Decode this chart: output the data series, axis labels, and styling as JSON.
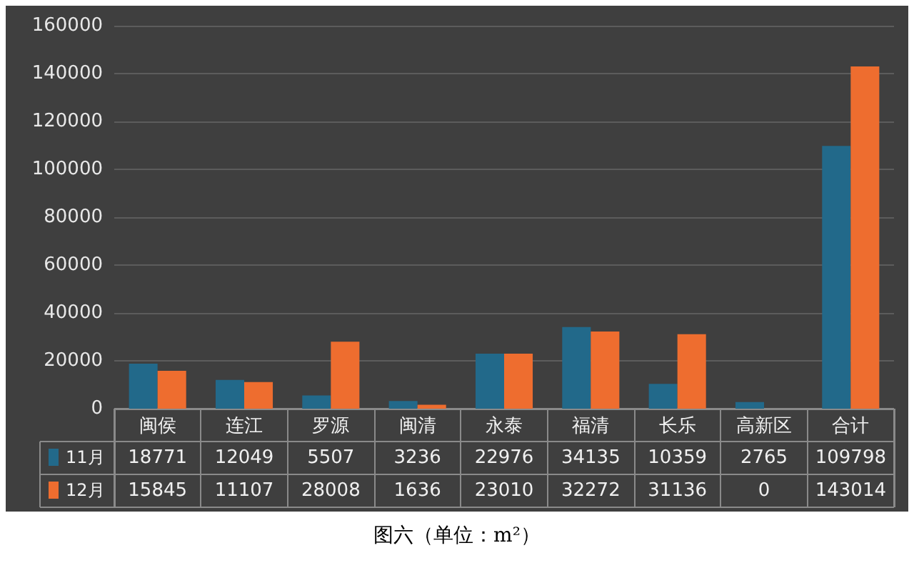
{
  "chart_data": {
    "type": "bar",
    "categories": [
      "闽侯",
      "连江",
      "罗源",
      "闽清",
      "永泰",
      "福清",
      "长乐",
      "高新区",
      "合计"
    ],
    "series": [
      {
        "name": "11月",
        "color": "#22698a",
        "values": [
          18771,
          12049,
          5507,
          3236,
          22976,
          34135,
          10359,
          2765,
          109798
        ]
      },
      {
        "name": "12月",
        "color": "#ee6d2f",
        "values": [
          15845,
          11107,
          28008,
          1636,
          23010,
          32272,
          31136,
          0,
          143014
        ]
      }
    ],
    "ylim": [
      0,
      160000
    ],
    "yticks": [
      0,
      20000,
      40000,
      60000,
      80000,
      100000,
      120000,
      140000,
      160000
    ],
    "grid": "y",
    "legend": "bottom left",
    "data_labels": true,
    "annotations": [
      "图六（单位：m²）"
    ]
  }
}
